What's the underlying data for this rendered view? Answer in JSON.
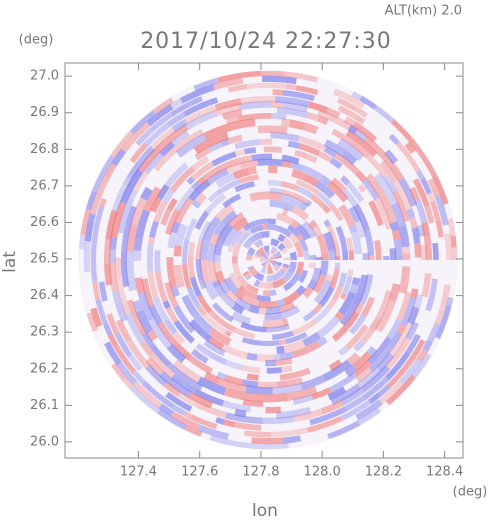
{
  "chart_data": {
    "type": "radar-scan",
    "altitude_label": "ALT(km) 2.0",
    "title": "2017/10/24 22:27:30",
    "y_unit": "(deg)",
    "x_unit": "(deg)",
    "ylabel": "lat",
    "xlabel": "lon",
    "xlim": [
      127.16,
      128.46
    ],
    "ylim": [
      25.956,
      27.036
    ],
    "xticks": [
      127.4,
      127.6,
      127.8,
      {
        "value": 128.0,
        "label": "128.0"
      },
      128.2,
      128.4
    ],
    "yticks": [
      {
        "value": 26.0,
        "label": "26.0"
      },
      26.1,
      26.2,
      26.3,
      26.4,
      26.5,
      26.6,
      26.7,
      26.8,
      26.9,
      {
        "value": 27.0,
        "label": "27.0"
      }
    ]
  }
}
